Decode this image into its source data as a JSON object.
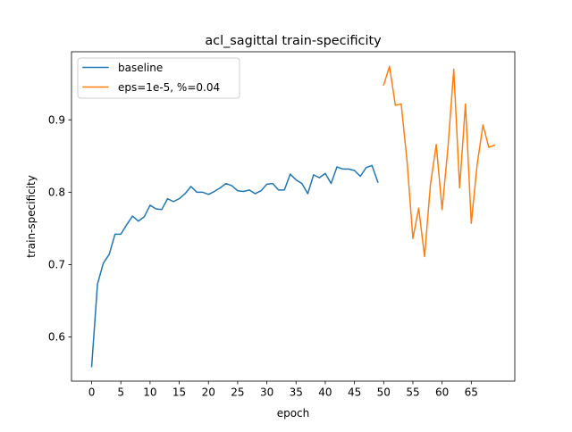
{
  "chart_data": {
    "type": "line",
    "title": "acl_sagittal train-specificity",
    "xlabel": "epoch",
    "ylabel": "train-specificity",
    "xlim": [
      -3.45,
      72.45
    ],
    "ylim": [
      0.5389,
      0.9941
    ],
    "x_ticks": [
      0,
      5,
      10,
      15,
      20,
      25,
      30,
      35,
      40,
      45,
      50,
      55,
      60,
      65
    ],
    "x_tick_labels": [
      "0",
      "5",
      "10",
      "15",
      "20",
      "25",
      "30",
      "35",
      "40",
      "45",
      "50",
      "55",
      "60",
      "65"
    ],
    "y_ticks": [
      0.6,
      0.7,
      0.8,
      0.9
    ],
    "y_tick_labels": [
      "0.6",
      "0.7",
      "0.8",
      "0.9"
    ],
    "grid": false,
    "legend_position": "upper-left",
    "series": [
      {
        "name": "baseline",
        "color": "#1f77b4",
        "x": [
          0,
          1,
          2,
          3,
          4,
          5,
          6,
          7,
          8,
          9,
          10,
          11,
          12,
          13,
          14,
          15,
          16,
          17,
          18,
          19,
          20,
          21,
          22,
          23,
          24,
          25,
          26,
          27,
          28,
          29,
          30,
          31,
          32,
          33,
          34,
          35,
          36,
          37,
          38,
          39,
          40,
          41,
          42,
          43,
          44,
          45,
          46,
          47,
          48,
          49
        ],
        "values": [
          0.559,
          0.673,
          0.702,
          0.714,
          0.742,
          0.742,
          0.755,
          0.767,
          0.76,
          0.766,
          0.782,
          0.777,
          0.776,
          0.791,
          0.787,
          0.791,
          0.798,
          0.808,
          0.8,
          0.8,
          0.797,
          0.801,
          0.806,
          0.812,
          0.809,
          0.802,
          0.801,
          0.803,
          0.798,
          0.802,
          0.811,
          0.812,
          0.803,
          0.803,
          0.825,
          0.817,
          0.812,
          0.798,
          0.824,
          0.82,
          0.826,
          0.812,
          0.835,
          0.832,
          0.832,
          0.83,
          0.822,
          0.834,
          0.837,
          0.814
        ]
      },
      {
        "name": "eps=1e-5, %=0.04",
        "color": "#ff7f0e",
        "x": [
          50,
          51,
          52,
          53,
          54,
          55,
          56,
          57,
          58,
          59,
          60,
          61,
          62,
          63,
          64,
          65,
          66,
          67,
          68,
          69
        ],
        "values": [
          0.948,
          0.974,
          0.92,
          0.922,
          0.843,
          0.736,
          0.778,
          0.711,
          0.81,
          0.866,
          0.776,
          0.861,
          0.97,
          0.806,
          0.922,
          0.757,
          0.838,
          0.893,
          0.862,
          0.865
        ]
      }
    ]
  }
}
